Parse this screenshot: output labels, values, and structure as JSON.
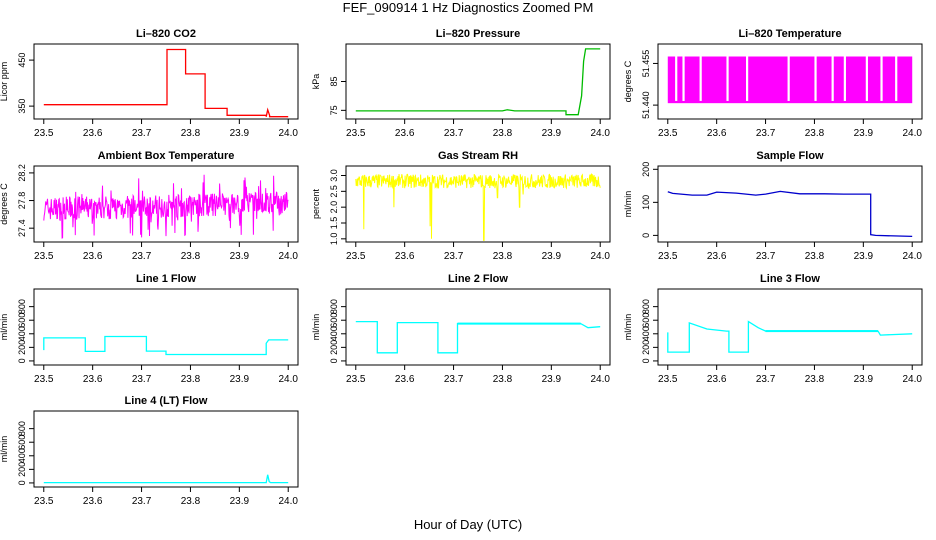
{
  "title": "FEF_090914  1 Hz Diagnostics Zoomed PM",
  "xlabel": "Hour of Day (UTC)",
  "chart_data": [
    {
      "type": "line",
      "title": "Li–820 CO2",
      "ylabel": "Licor ppm",
      "color": "#ff0000",
      "xlim": [
        23.48,
        24.02
      ],
      "ylim": [
        322,
        485
      ],
      "xticks": [
        "23.5",
        "23.6",
        "23.7",
        "23.8",
        "23.9",
        "24.0"
      ],
      "yticks": [
        "350",
        "450"
      ],
      "series": [
        {
          "x": [
            23.5,
            23.752,
            23.752,
            23.79,
            23.79,
            23.83,
            23.83,
            23.875,
            23.875,
            23.955,
            23.955,
            23.958,
            23.962,
            23.962,
            24.0
          ],
          "y": [
            353,
            353,
            473,
            473,
            420,
            420,
            345,
            345,
            330,
            330,
            327,
            342,
            330,
            327,
            327
          ]
        }
      ]
    },
    {
      "type": "line",
      "title": "Li–820 Pressure",
      "ylabel": "kPa",
      "color": "#00bb00",
      "xlim": [
        23.48,
        24.02
      ],
      "ylim": [
        72,
        98
      ],
      "xticks": [
        "23.5",
        "23.6",
        "23.7",
        "23.8",
        "23.9",
        "24.0"
      ],
      "yticks": [
        "75",
        "85"
      ],
      "series": [
        {
          "x": [
            23.5,
            23.8,
            23.81,
            23.825,
            23.93,
            23.93,
            23.955,
            23.962,
            23.966,
            23.97,
            24.0
          ],
          "y": [
            74.8,
            74.8,
            75.2,
            74.8,
            74.8,
            73.5,
            73.5,
            80,
            92,
            96.3,
            96.3
          ]
        }
      ]
    },
    {
      "type": "bar",
      "title": "Li–820 Temperature",
      "ylabel": "degrees C",
      "color": "#ff00ff",
      "xlim": [
        23.48,
        24.02
      ],
      "ylim": [
        51.435,
        51.462
      ],
      "xticks": [
        "23.5",
        "23.6",
        "23.7",
        "23.8",
        "23.9",
        "24.0"
      ],
      "yticks": [
        "51.440",
        "51.455"
      ],
      "series": [
        {
          "name": "",
          "x": [
            23.515,
            23.53,
            23.565,
            23.62,
            23.66,
            23.745,
            23.8,
            23.835,
            23.86,
            23.905,
            23.935,
            23.965
          ],
          "values": [
            51.4407,
            51.4407,
            51.4407,
            51.4407,
            51.4407,
            51.4407,
            51.4407,
            51.4407,
            51.4407,
            51.4407,
            51.4407,
            51.4407
          ]
        }
      ]
    },
    {
      "type": "line",
      "title": "Ambient Box Temperature",
      "ylabel": "degrees C",
      "color": "#ff00ff",
      "xlim": [
        23.48,
        24.02
      ],
      "ylim": [
        27.2,
        28.3
      ],
      "xticks": [
        "23.5",
        "23.6",
        "23.7",
        "23.8",
        "23.9",
        "24.0"
      ],
      "yticks": [
        "27.4",
        "27.8",
        "28.2"
      ],
      "series": [
        {
          "x": [
            23.5,
            23.6,
            23.7,
            23.8,
            23.9,
            24.0
          ],
          "y": [
            27.7,
            27.75,
            27.75,
            27.8,
            27.85,
            27.85
          ]
        }
      ]
    },
    {
      "type": "line",
      "title": "Gas Stream RH",
      "ylabel": "percent",
      "color": "#ffff00",
      "xlim": [
        23.48,
        24.02
      ],
      "ylim": [
        0.9,
        3.3
      ],
      "xticks": [
        "23.5",
        "23.6",
        "23.7",
        "23.8",
        "23.9",
        "24.0"
      ],
      "yticks": [
        "1.0",
        "1.5",
        "2.0",
        "2.5",
        "3.0"
      ],
      "series": [
        {
          "x": [
            23.5,
            23.6,
            23.7,
            23.8,
            23.9,
            24.0
          ],
          "y": [
            2.8,
            2.8,
            2.8,
            2.8,
            2.8,
            2.8
          ]
        }
      ]
    },
    {
      "type": "line",
      "title": "Sample Flow",
      "ylabel": "ml/min",
      "color": "#0000cc",
      "xlim": [
        23.48,
        24.02
      ],
      "ylim": [
        -20,
        210
      ],
      "xticks": [
        "23.5",
        "23.6",
        "23.7",
        "23.8",
        "23.9",
        "24.0"
      ],
      "yticks": [
        "0",
        "100",
        "200"
      ],
      "series": [
        {
          "x": [
            23.5,
            23.51,
            23.55,
            23.58,
            23.6,
            23.64,
            23.68,
            23.7,
            23.73,
            23.77,
            23.82,
            23.86,
            23.915,
            23.915,
            23.925,
            24.0
          ],
          "y": [
            132,
            127,
            122,
            122,
            131,
            128,
            122,
            125,
            133,
            126,
            126,
            125,
            125,
            2,
            0,
            -3
          ]
        }
      ]
    },
    {
      "type": "line",
      "title": "Line 1 Flow",
      "ylabel": "ml/min",
      "color": "#00ffff",
      "xlim": [
        23.48,
        24.02
      ],
      "ylim": [
        -60,
        1060
      ],
      "xticks": [
        "23.5",
        "23.6",
        "23.7",
        "23.8",
        "23.9",
        "24.0"
      ],
      "yticks": [
        "0",
        "200",
        "400",
        "600",
        "800"
      ],
      "series": [
        {
          "x": [
            23.5,
            23.5,
            23.585,
            23.585,
            23.625,
            23.625,
            23.71,
            23.71,
            23.75,
            23.75,
            23.955,
            23.955,
            23.96,
            24.0
          ],
          "y": [
            160,
            340,
            340,
            140,
            140,
            360,
            360,
            145,
            145,
            95,
            95,
            260,
            310,
            310
          ]
        }
      ]
    },
    {
      "type": "line",
      "title": "Line 2 Flow",
      "ylabel": "ml/min",
      "color": "#00ffff",
      "xlim": [
        23.48,
        24.02
      ],
      "ylim": [
        -60,
        1060
      ],
      "xticks": [
        "23.5",
        "23.6",
        "23.7",
        "23.8",
        "23.9",
        "24.0"
      ],
      "yticks": [
        "0",
        "200",
        "400",
        "600",
        "800"
      ],
      "series": [
        {
          "x": [
            23.5,
            23.544,
            23.544,
            23.585,
            23.585,
            23.668,
            23.668,
            23.708,
            23.708,
            23.96,
            23.975,
            24.0
          ],
          "y": [
            580,
            580,
            120,
            120,
            565,
            565,
            120,
            120,
            550,
            550,
            490,
            505
          ]
        }
      ]
    },
    {
      "type": "line",
      "title": "Line 3 Flow",
      "ylabel": "ml/min",
      "color": "#00ffff",
      "xlim": [
        23.48,
        24.02
      ],
      "ylim": [
        -60,
        1060
      ],
      "xticks": [
        "23.5",
        "23.6",
        "23.7",
        "23.8",
        "23.9",
        "24.0"
      ],
      "yticks": [
        "0",
        "200",
        "400",
        "600",
        "800"
      ],
      "series": [
        {
          "x": [
            23.5,
            23.5,
            23.544,
            23.544,
            23.58,
            23.62,
            23.625,
            23.625,
            23.665,
            23.665,
            23.685,
            23.7,
            23.93,
            23.935,
            24.0
          ],
          "y": [
            420,
            130,
            130,
            560,
            470,
            440,
            440,
            130,
            130,
            580,
            490,
            440,
            440,
            380,
            400
          ]
        }
      ]
    },
    {
      "type": "line",
      "title": "Line 4 (LT) Flow",
      "ylabel": "ml/min",
      "color": "#00ffff",
      "xlim": [
        23.48,
        24.02
      ],
      "ylim": [
        -60,
        1060
      ],
      "xticks": [
        "23.5",
        "23.6",
        "23.7",
        "23.8",
        "23.9",
        "24.0"
      ],
      "yticks": [
        "0",
        "200",
        "400",
        "600",
        "800"
      ],
      "series": [
        {
          "x": [
            23.5,
            23.955,
            23.958,
            23.961,
            23.964,
            24.0
          ],
          "y": [
            5,
            5,
            120,
            20,
            5,
            5
          ]
        }
      ]
    }
  ]
}
